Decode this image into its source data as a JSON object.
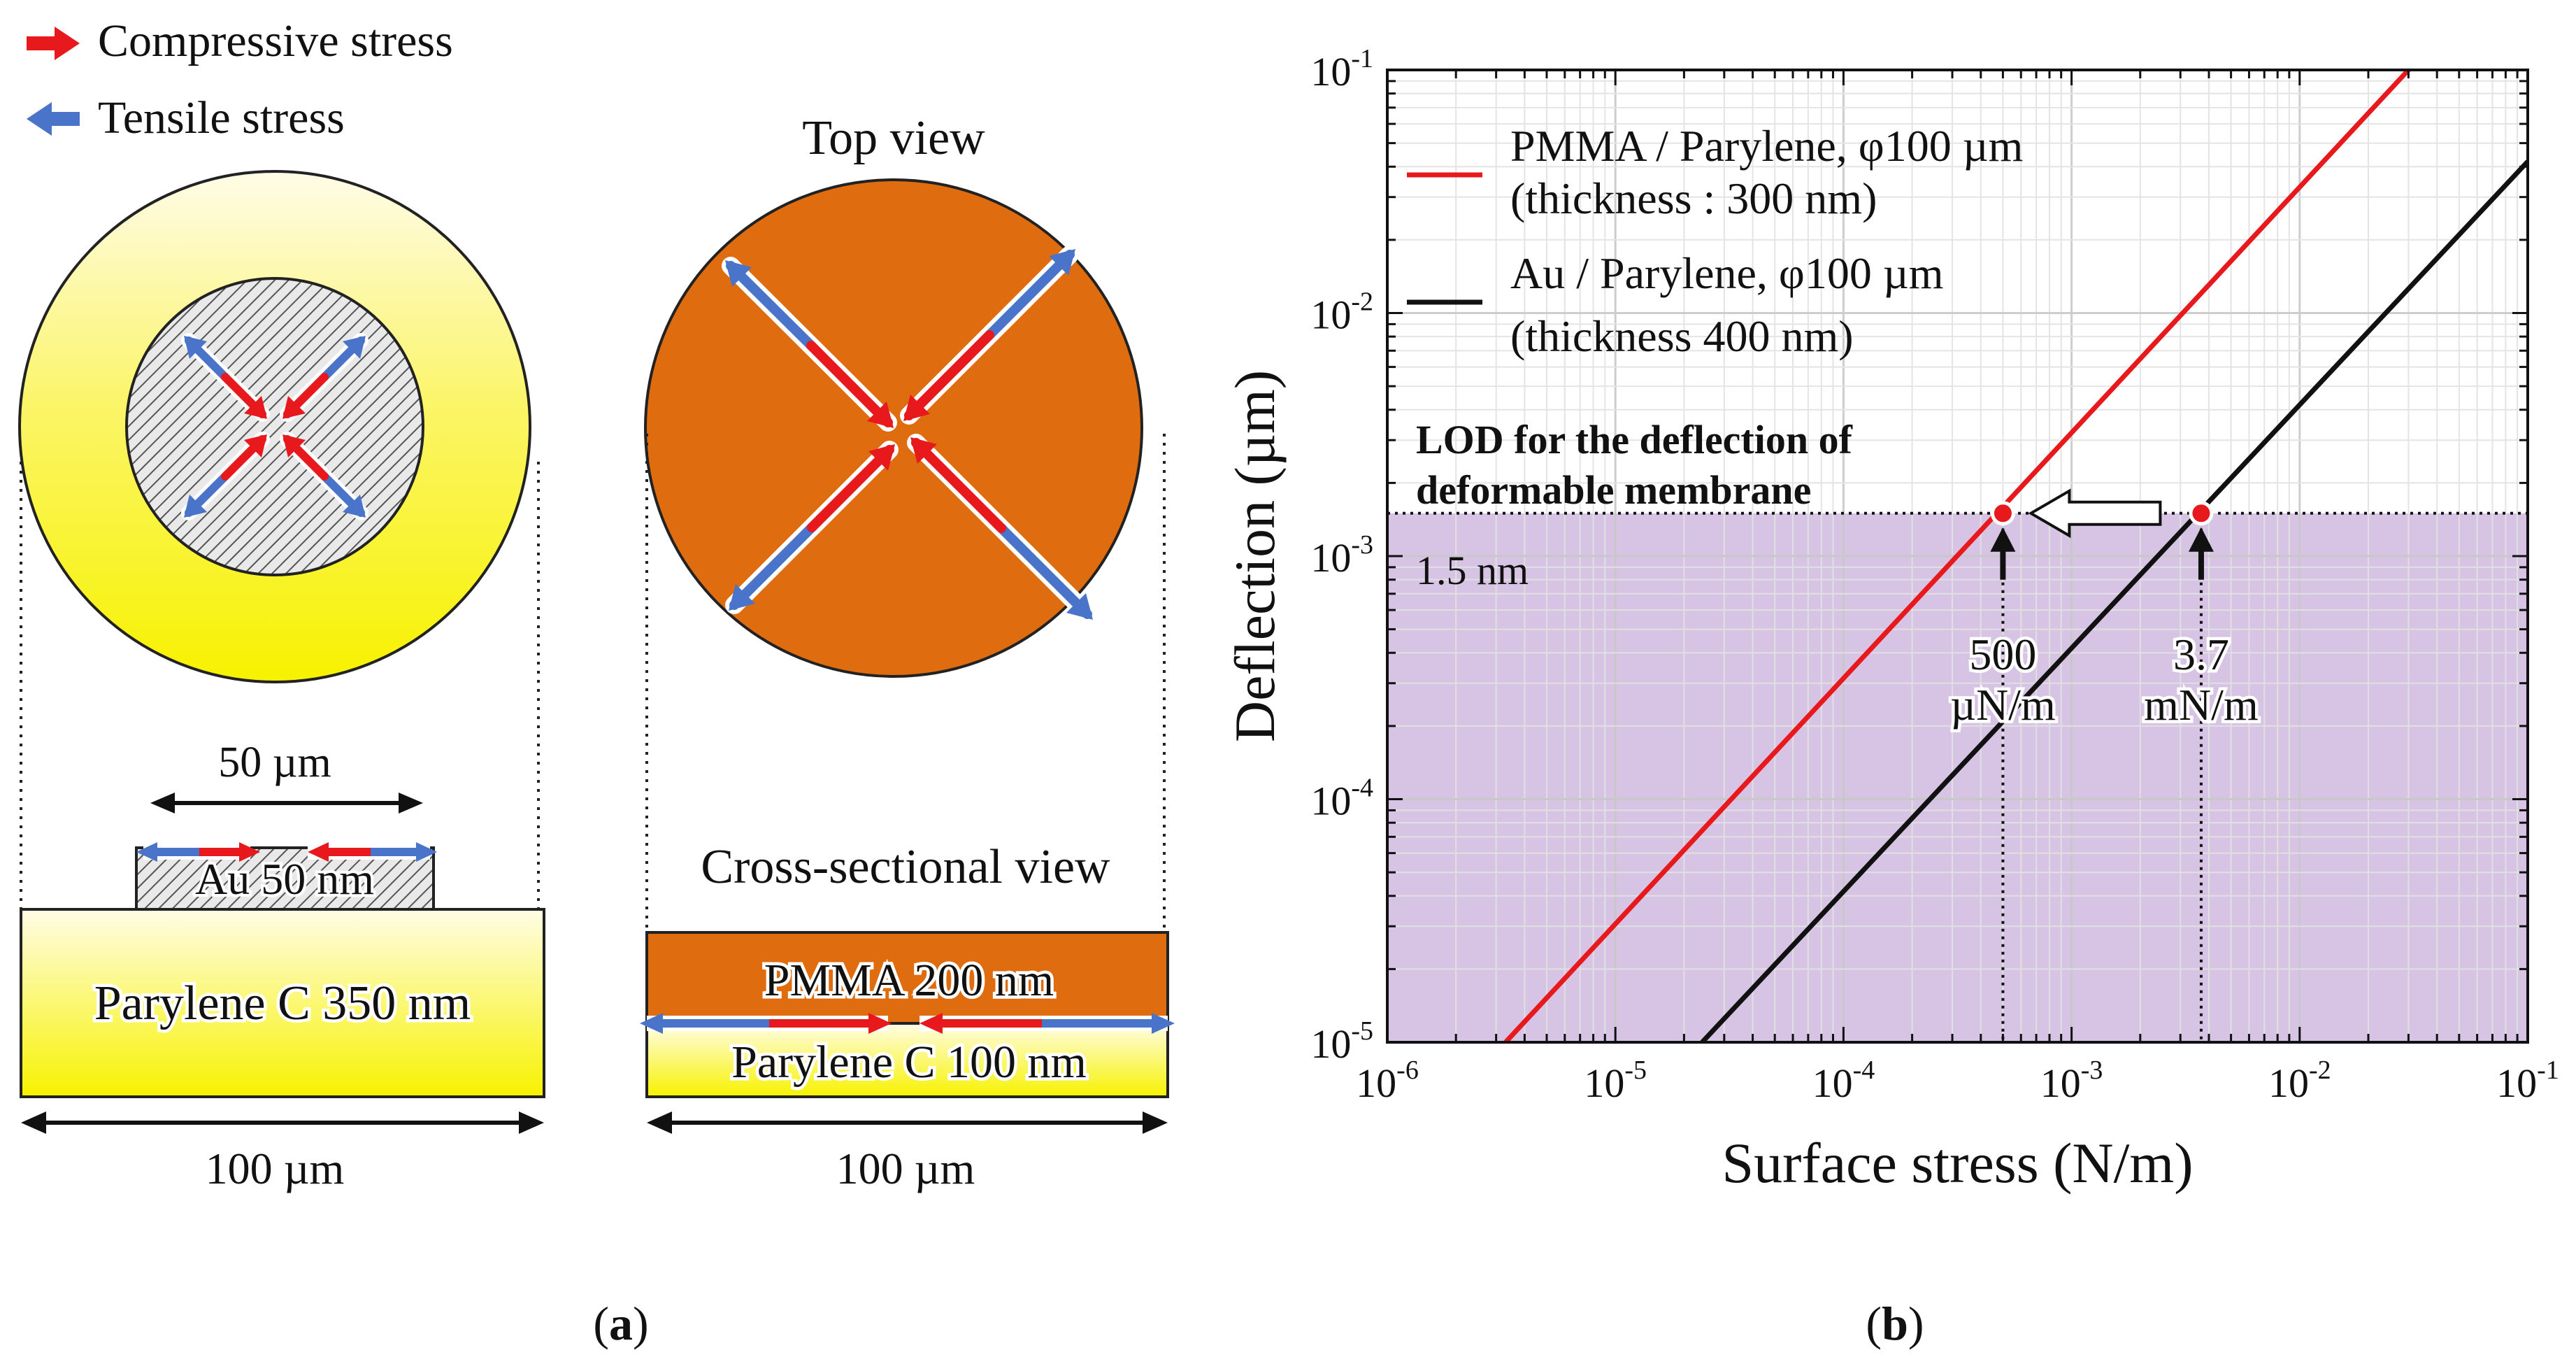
{
  "panel_a": {
    "legend": {
      "compressive_label": "Compressive stress",
      "tensile_label": "Tensile stress"
    },
    "left_device": {
      "width_label": "50 µm",
      "au_layer_label": "Au 50 nm",
      "substrate_label": "Parylene C 350 nm",
      "base_width_label": "100 µm"
    },
    "right_device": {
      "top_view_label": "Top view",
      "cross_section_label": "Cross-sectional view",
      "pmma_layer_label": "PMMA 200 nm",
      "parylene_layer_label": "Parylene C 100 nm",
      "base_width_label": "100 µm"
    },
    "caption": "(a)"
  },
  "panel_b": {
    "caption": "(b)"
  },
  "colors": {
    "compressive": "#e8191c",
    "tensile": "#4a74c9",
    "pmma": "#e06c10",
    "parylene_yellow": "#fafa00",
    "lod_region": "#d7c4e4",
    "series_pmma": "#e8191c",
    "series_au": "#111111"
  },
  "chart_data": {
    "type": "line",
    "xscale": "log",
    "yscale": "log",
    "xlim": [
      1e-06,
      0.1
    ],
    "ylim": [
      1e-05,
      0.1
    ],
    "xlabel": "Surface stress (N/m)",
    "ylabel": "Deflection (µm)",
    "xticks": [
      {
        "base": "10",
        "exp": "-6"
      },
      {
        "base": "10",
        "exp": "-5"
      },
      {
        "base": "10",
        "exp": "-4"
      },
      {
        "base": "10",
        "exp": "-3"
      },
      {
        "base": "10",
        "exp": "-2"
      },
      {
        "base": "10",
        "exp": "-1"
      }
    ],
    "yticks": [
      {
        "base": "10",
        "exp": "-5"
      },
      {
        "base": "10",
        "exp": "-4"
      },
      {
        "base": "10",
        "exp": "-3"
      },
      {
        "base": "10",
        "exp": "-2"
      },
      {
        "base": "10",
        "exp": "-1"
      }
    ],
    "grid": true,
    "legend_position": "top-left",
    "series": [
      {
        "name": "PMMA / Parylene, φ100 µm",
        "name_line2": "(thickness : 300 nm)",
        "color": "#e8191c",
        "x": [
          3.3e-06,
          0.03
        ],
        "y": [
          1e-05,
          0.1
        ]
      },
      {
        "name": "Au / Parylene, φ100 µm",
        "name_line2": "(thickness 400 nm)",
        "color": "#111111",
        "x": [
          2.4e-05,
          0.1
        ],
        "y": [
          1e-05,
          0.042
        ]
      }
    ],
    "lod": {
      "value": 0.0015,
      "label_line1": "LOD for the deflection of",
      "label_line2": "deformable membrane",
      "value_label": "1.5 nm"
    },
    "points": [
      {
        "x": 0.0005,
        "y": 0.0015,
        "label_line1": "500",
        "label_line2": "µN/m"
      },
      {
        "x": 0.0037,
        "y": 0.0015,
        "label_line1": "3.7",
        "label_line2": "mN/m"
      }
    ]
  }
}
